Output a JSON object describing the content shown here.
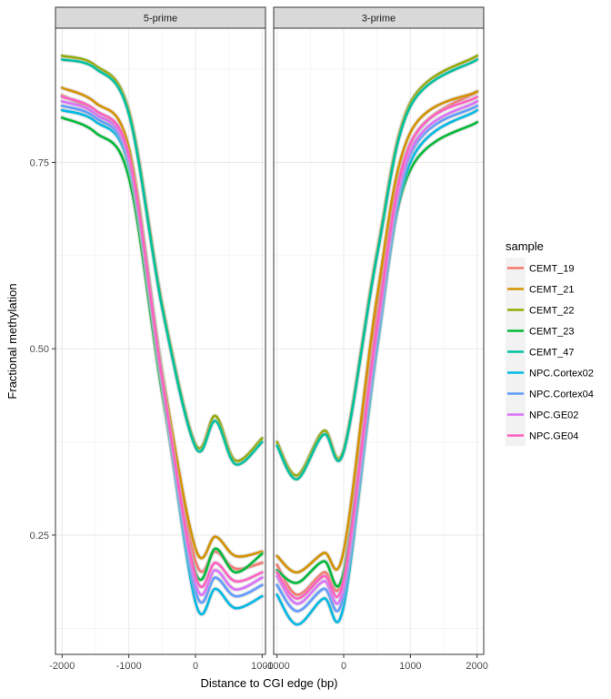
{
  "chart_data": {
    "type": "line",
    "xlabel": "Distance to CGI edge (bp)",
    "ylabel": "Fractional methylation",
    "panels": [
      {
        "label": "5-prime",
        "xlim": [
          -2100,
          1050
        ],
        "xticks": [
          -2000,
          -1000,
          0,
          1000
        ],
        "xtick_labels": [
          "-2000",
          "-1000",
          "0",
          "1000"
        ]
      },
      {
        "label": "3-prime",
        "xlim": [
          -1050,
          2100
        ],
        "xticks": [
          -1000,
          0,
          1000,
          2000
        ],
        "xtick_labels": [
          "-1000",
          "0",
          "1000",
          "2000"
        ]
      }
    ],
    "ylim": [
      0.09,
      0.93
    ],
    "yticks": [
      0.25,
      0.5,
      0.75
    ],
    "ytick_labels": [
      "0.25",
      "0.50",
      "0.75"
    ],
    "grid": true,
    "legend": {
      "title": "sample",
      "position": "right"
    },
    "series": [
      {
        "name": "CEMT_19",
        "color": "#F8766D",
        "five_prime": [
          [
            -2000,
            0.84
          ],
          [
            -1500,
            0.815
          ],
          [
            -1000,
            0.76
          ],
          [
            -500,
            0.46
          ],
          [
            0,
            0.215
          ],
          [
            300,
            0.228
          ],
          [
            600,
            0.205
          ],
          [
            1000,
            0.213
          ]
        ],
        "three_prime": [
          [
            -1000,
            0.21
          ],
          [
            -700,
            0.17
          ],
          [
            -300,
            0.2
          ],
          [
            0,
            0.2
          ],
          [
            500,
            0.55
          ],
          [
            1000,
            0.775
          ],
          [
            2000,
            0.845
          ]
        ]
      },
      {
        "name": "CEMT_21",
        "color": "#D39200",
        "five_prime": [
          [
            -2000,
            0.85
          ],
          [
            -1500,
            0.83
          ],
          [
            -1000,
            0.77
          ],
          [
            -500,
            0.47
          ],
          [
            0,
            0.232
          ],
          [
            300,
            0.248
          ],
          [
            600,
            0.222
          ],
          [
            1000,
            0.228
          ]
        ],
        "three_prime": [
          [
            -1000,
            0.222
          ],
          [
            -700,
            0.2
          ],
          [
            -300,
            0.226
          ],
          [
            0,
            0.229
          ],
          [
            500,
            0.57
          ],
          [
            1000,
            0.79
          ],
          [
            2000,
            0.845
          ]
        ]
      },
      {
        "name": "CEMT_22",
        "color": "#93AA00",
        "five_prime": [
          [
            -2000,
            0.893
          ],
          [
            -1500,
            0.88
          ],
          [
            -1000,
            0.82
          ],
          [
            -500,
            0.56
          ],
          [
            0,
            0.372
          ],
          [
            300,
            0.41
          ],
          [
            600,
            0.35
          ],
          [
            1000,
            0.38
          ]
        ],
        "three_prime": [
          [
            -1000,
            0.375
          ],
          [
            -700,
            0.33
          ],
          [
            -300,
            0.39
          ],
          [
            0,
            0.365
          ],
          [
            500,
            0.63
          ],
          [
            1000,
            0.83
          ],
          [
            2000,
            0.893
          ]
        ]
      },
      {
        "name": "CEMT_23",
        "color": "#00BA38",
        "five_prime": [
          [
            -2000,
            0.81
          ],
          [
            -1500,
            0.79
          ],
          [
            -1000,
            0.73
          ],
          [
            -500,
            0.44
          ],
          [
            0,
            0.2
          ],
          [
            300,
            0.232
          ],
          [
            600,
            0.2
          ],
          [
            1000,
            0.225
          ]
        ],
        "three_prime": [
          [
            -1000,
            0.203
          ],
          [
            -700,
            0.186
          ],
          [
            -300,
            0.215
          ],
          [
            0,
            0.2
          ],
          [
            500,
            0.52
          ],
          [
            1000,
            0.74
          ],
          [
            2000,
            0.804
          ]
        ]
      },
      {
        "name": "CEMT_47",
        "color": "#00C19F",
        "five_prime": [
          [
            -2000,
            0.888
          ],
          [
            -1500,
            0.876
          ],
          [
            -1000,
            0.815
          ],
          [
            -500,
            0.555
          ],
          [
            0,
            0.368
          ],
          [
            300,
            0.403
          ],
          [
            600,
            0.345
          ],
          [
            1000,
            0.375
          ]
        ],
        "three_prime": [
          [
            -1000,
            0.37
          ],
          [
            -700,
            0.325
          ],
          [
            -300,
            0.385
          ],
          [
            0,
            0.362
          ],
          [
            500,
            0.625
          ],
          [
            1000,
            0.825
          ],
          [
            2000,
            0.888
          ]
        ]
      },
      {
        "name": "NPC.Cortex02",
        "color": "#00B9E3",
        "five_prime": [
          [
            -2000,
            0.82
          ],
          [
            -1500,
            0.805
          ],
          [
            -1000,
            0.745
          ],
          [
            -500,
            0.45
          ],
          [
            0,
            0.16
          ],
          [
            300,
            0.178
          ],
          [
            600,
            0.152
          ],
          [
            1000,
            0.168
          ]
        ],
        "three_prime": [
          [
            -1000,
            0.17
          ],
          [
            -700,
            0.13
          ],
          [
            -300,
            0.165
          ],
          [
            0,
            0.155
          ],
          [
            500,
            0.5
          ],
          [
            1000,
            0.75
          ],
          [
            2000,
            0.82
          ]
        ]
      },
      {
        "name": "NPC.Cortex04",
        "color": "#619CFF",
        "five_prime": [
          [
            -2000,
            0.826
          ],
          [
            -1500,
            0.81
          ],
          [
            -1000,
            0.75
          ],
          [
            -500,
            0.455
          ],
          [
            0,
            0.175
          ],
          [
            300,
            0.193
          ],
          [
            600,
            0.168
          ],
          [
            1000,
            0.183
          ]
        ],
        "three_prime": [
          [
            -1000,
            0.183
          ],
          [
            -700,
            0.148
          ],
          [
            -300,
            0.178
          ],
          [
            0,
            0.17
          ],
          [
            500,
            0.51
          ],
          [
            1000,
            0.76
          ],
          [
            2000,
            0.826
          ]
        ]
      },
      {
        "name": "NPC.GE02",
        "color": "#DB72FB",
        "five_prime": [
          [
            -2000,
            0.832
          ],
          [
            -1500,
            0.815
          ],
          [
            -1000,
            0.755
          ],
          [
            -500,
            0.46
          ],
          [
            0,
            0.185
          ],
          [
            300,
            0.203
          ],
          [
            600,
            0.177
          ],
          [
            1000,
            0.193
          ]
        ],
        "three_prime": [
          [
            -1000,
            0.195
          ],
          [
            -700,
            0.158
          ],
          [
            -300,
            0.188
          ],
          [
            0,
            0.18
          ],
          [
            500,
            0.52
          ],
          [
            1000,
            0.765
          ],
          [
            2000,
            0.832
          ]
        ]
      },
      {
        "name": "NPC.GE04",
        "color": "#FF61C3",
        "five_prime": [
          [
            -2000,
            0.838
          ],
          [
            -1500,
            0.82
          ],
          [
            -1000,
            0.76
          ],
          [
            -500,
            0.46
          ],
          [
            0,
            0.195
          ],
          [
            300,
            0.213
          ],
          [
            600,
            0.188
          ],
          [
            1000,
            0.2
          ]
        ],
        "three_prime": [
          [
            -1000,
            0.2
          ],
          [
            -700,
            0.165
          ],
          [
            -300,
            0.195
          ],
          [
            0,
            0.19
          ],
          [
            500,
            0.53
          ],
          [
            1000,
            0.775
          ],
          [
            2000,
            0.838
          ]
        ]
      }
    ]
  }
}
